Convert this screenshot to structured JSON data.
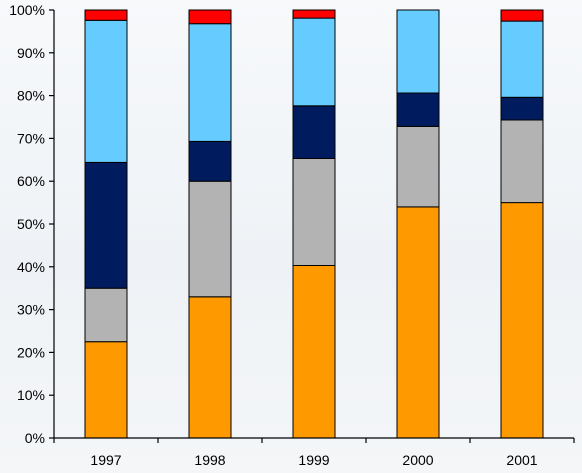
{
  "chart_data": {
    "type": "bar",
    "stacked": true,
    "percent": true,
    "title": "",
    "xlabel": "",
    "ylabel": "",
    "categories": [
      "1997",
      "1998",
      "1999",
      "2000",
      "2001"
    ],
    "ylim": [
      0,
      100
    ],
    "yticks": [
      "0%",
      "10%",
      "20%",
      "30%",
      "40%",
      "50%",
      "60%",
      "70%",
      "80%",
      "90%",
      "100%"
    ],
    "grid": false,
    "legend": "none",
    "series": [
      {
        "color": "#ff9900",
        "values": [
          22.5,
          33,
          40.3,
          54,
          55
        ]
      },
      {
        "color": "#b3b3b3",
        "values": [
          12.5,
          27,
          25,
          18.8,
          19.3
        ]
      },
      {
        "color": "#001b5e",
        "values": [
          29.4,
          9.3,
          12.3,
          7.8,
          5.3
        ]
      },
      {
        "color": "#66ccff",
        "values": [
          33.2,
          27.5,
          20.5,
          19.4,
          17.8
        ]
      },
      {
        "color": "#ff0000",
        "values": [
          2.4,
          3.2,
          1.9,
          0,
          2.6
        ]
      }
    ]
  }
}
